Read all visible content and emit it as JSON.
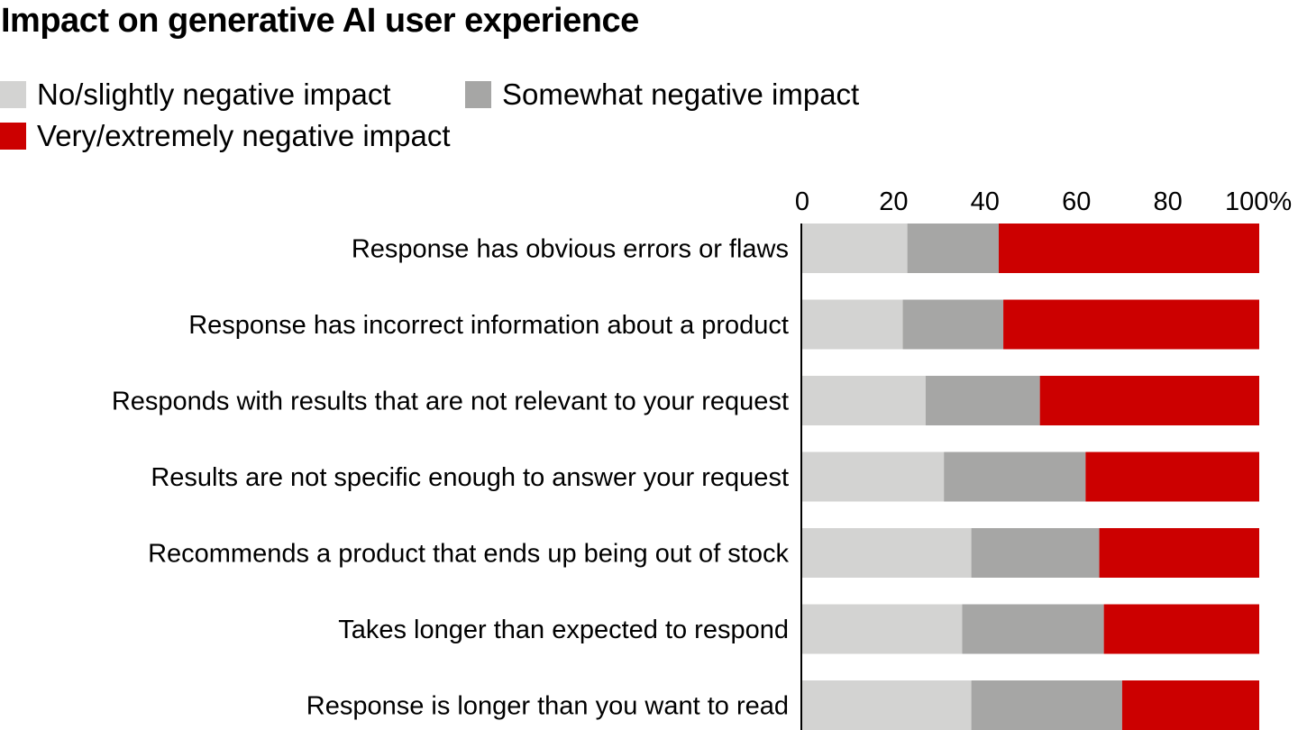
{
  "chart_data": {
    "type": "bar",
    "orientation": "horizontal",
    "stacked": true,
    "title": "Impact on generative AI user experience",
    "xlabel": "",
    "ylabel": "",
    "xlim": [
      0,
      100
    ],
    "x_ticks": [
      0,
      20,
      40,
      60,
      80,
      100
    ],
    "x_tick_labels": [
      "0",
      "20",
      "40",
      "60",
      "80",
      "100%"
    ],
    "x_axis_position": "top",
    "grid": false,
    "legend_position": "top-left",
    "categories": [
      "Response has obvious errors or flaws",
      "Response has incorrect information about a product",
      "Responds with results that are not relevant to your request",
      "Results are not specific enough to answer your request",
      "Recommends a product that ends up being out of stock",
      "Takes longer than expected to respond",
      "Response is longer than you want to read"
    ],
    "series": [
      {
        "name": "No/slightly negative impact",
        "color": "#d3d3d2",
        "values": [
          23,
          22,
          27,
          31,
          37,
          35,
          37
        ]
      },
      {
        "name": "Somewhat negative impact",
        "color": "#a6a6a5",
        "values": [
          20,
          22,
          25,
          31,
          28,
          31,
          33
        ]
      },
      {
        "name": "Very/extremely negative impact",
        "color": "#cc0000",
        "values": [
          57,
          56,
          48,
          38,
          35,
          34,
          30
        ]
      }
    ]
  }
}
